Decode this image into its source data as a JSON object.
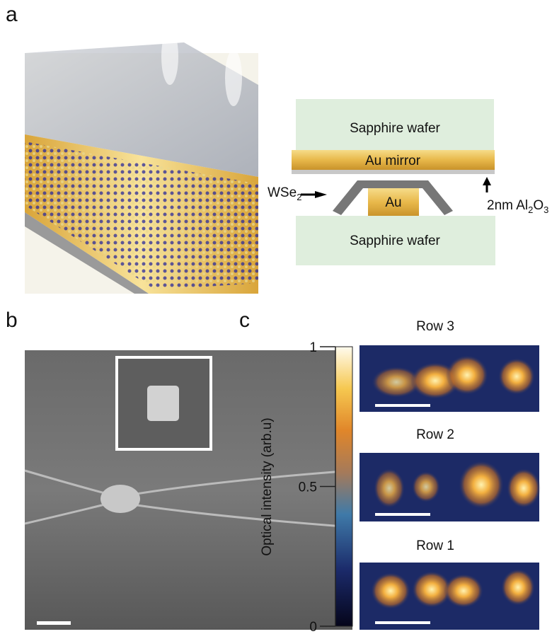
{
  "panel_labels": [
    "a",
    "b",
    "c"
  ],
  "schematic": {
    "top_wafer": "Sapphire wafer",
    "mirror": "Au mirror",
    "au": "Au",
    "bottom_wafer": "Sapphire wafer",
    "wse2": {
      "base": "WSe",
      "sub": "2"
    },
    "spacer": {
      "prefix": "2nm Al",
      "sub1": "2",
      "mid": "O",
      "sub2": "3"
    }
  },
  "colorbar": {
    "label": "Optical intensity (arb.u)",
    "range": [
      0,
      1
    ],
    "ticks": [
      0,
      0.5,
      1
    ]
  },
  "rows": [
    "Row 3",
    "Row 2",
    "Row 1"
  ]
}
